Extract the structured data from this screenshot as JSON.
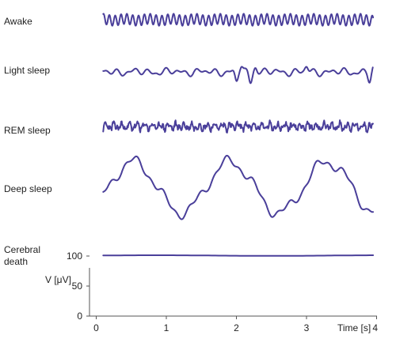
{
  "chart_data": {
    "type": "line",
    "x_axis": {
      "label": "Time [s]",
      "range": [
        0,
        4.05
      ],
      "ticks": [
        0,
        1,
        2,
        3,
        4
      ],
      "tick_labels": [
        "0",
        "1",
        "2",
        "3",
        "4"
      ]
    },
    "y_axis": {
      "label": "V [μV]",
      "range": [
        0,
        100
      ],
      "ticks": [
        0,
        50,
        100
      ],
      "tick_labels": [
        "0",
        "50",
        "100"
      ]
    },
    "series": [
      {
        "name": "Awake",
        "waveform": "fast low-amplitude oscillation",
        "dominant_frequency_hz": 12,
        "amplitude_uv": 12
      },
      {
        "name": "Light sleep",
        "waveform": "irregular low-amplitude activity with sharp transients",
        "transients_at_s": [
          2.0,
          2.2,
          3.0,
          3.9
        ],
        "amplitude_uv": 12
      },
      {
        "name": "REM sleep",
        "waveform": "low-amplitude mixed-frequency activity",
        "amplitude_uv": 12
      },
      {
        "name": "Deep sleep",
        "waveform": "high-amplitude slow waves",
        "dominant_frequency_hz": 1,
        "amplitude_uv": 65
      },
      {
        "name": "Cerebral death",
        "waveform": "flat line",
        "amplitude_uv": 1
      }
    ],
    "colors": {
      "trace": "#4a3f9a",
      "axis": "#555555",
      "text": "#222222"
    },
    "labels": {
      "awake": "Awake",
      "light": "Light sleep",
      "rem": "REM sleep",
      "deep": "Deep sleep",
      "death_line1": "Cerebral",
      "death_line2": "death"
    }
  }
}
